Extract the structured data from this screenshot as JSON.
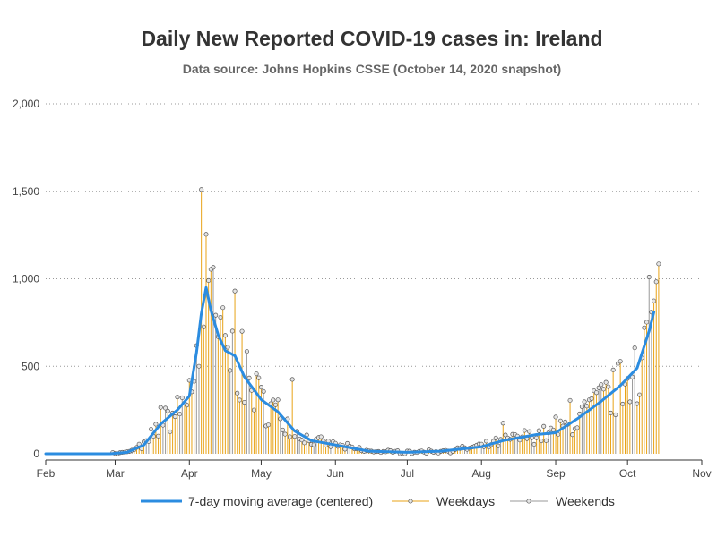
{
  "chart_data": {
    "type": "bar+line",
    "title": "Daily New Reported COVID-19 cases in: Ireland",
    "subtitle": "Data source: Johns Hopkins CSSE (October 14, 2020 snapshot)",
    "x_ticks": [
      "Feb",
      "Mar",
      "Apr",
      "May",
      "Jun",
      "Jul",
      "Aug",
      "Sep",
      "Oct",
      "Nov"
    ],
    "y_ticks": [
      "0",
      "500",
      "1,000",
      "1,500",
      "2,000"
    ],
    "ylim": [
      0,
      2000
    ],
    "xlim": [
      "2020-02-01",
      "2020-11-01"
    ],
    "grid": "horizontal dotted",
    "legend_position": "bottom",
    "colors": {
      "moving_average": "#2b8ce0",
      "weekdays": "#e8a317",
      "weekends": "#999999",
      "axis": "#333333",
      "grid": "#999999"
    },
    "series": [
      {
        "name": "7-day moving average (centered)",
        "style": "thick line"
      },
      {
        "name": "Weekdays",
        "style": "needle with circle marker"
      },
      {
        "name": "Weekends",
        "style": "needle with circle marker"
      }
    ],
    "key_points": [
      {
        "date": "2020-03-01",
        "value": 1
      },
      {
        "date": "2020-03-15",
        "value": 70
      },
      {
        "date": "2020-03-20",
        "value": 265
      },
      {
        "date": "2020-04-01",
        "value": 420
      },
      {
        "date": "2020-04-05",
        "value": 500
      },
      {
        "date": "2020-04-06",
        "value": 1510
      },
      {
        "date": "2020-04-07",
        "value": 725
      },
      {
        "date": "2020-04-09",
        "value": 990
      },
      {
        "date": "2020-04-11",
        "value": 1065
      },
      {
        "date": "2020-04-14",
        "value": 780
      },
      {
        "date": "2020-04-20",
        "value": 930
      },
      {
        "date": "2020-04-23",
        "value": 700
      },
      {
        "date": "2020-05-01",
        "value": 380
      },
      {
        "date": "2020-05-14",
        "value": 425
      },
      {
        "date": "2020-06-01",
        "value": 60
      },
      {
        "date": "2020-07-01",
        "value": 15
      },
      {
        "date": "2020-08-01",
        "value": 55
      },
      {
        "date": "2020-08-10",
        "value": 175
      },
      {
        "date": "2020-09-01",
        "value": 210
      },
      {
        "date": "2020-09-07",
        "value": 305
      },
      {
        "date": "2020-09-20",
        "value": 395
      },
      {
        "date": "2020-10-01",
        "value": 430
      },
      {
        "date": "2020-10-04",
        "value": 605
      },
      {
        "date": "2020-10-10",
        "value": 1010
      },
      {
        "date": "2020-10-11",
        "value": 810
      },
      {
        "date": "2020-10-14",
        "value": 1085
      }
    ],
    "moving_average": [
      {
        "date": "2020-02-01",
        "value": 0
      },
      {
        "date": "2020-02-28",
        "value": 0
      },
      {
        "date": "2020-03-06",
        "value": 8
      },
      {
        "date": "2020-03-13",
        "value": 50
      },
      {
        "date": "2020-03-20",
        "value": 170
      },
      {
        "date": "2020-03-27",
        "value": 250
      },
      {
        "date": "2020-04-01",
        "value": 330
      },
      {
        "date": "2020-04-04",
        "value": 580
      },
      {
        "date": "2020-04-06",
        "value": 800
      },
      {
        "date": "2020-04-08",
        "value": 950
      },
      {
        "date": "2020-04-10",
        "value": 820
      },
      {
        "date": "2020-04-13",
        "value": 680
      },
      {
        "date": "2020-04-16",
        "value": 590
      },
      {
        "date": "2020-04-20",
        "value": 560
      },
      {
        "date": "2020-04-24",
        "value": 440
      },
      {
        "date": "2020-05-01",
        "value": 310
      },
      {
        "date": "2020-05-08",
        "value": 240
      },
      {
        "date": "2020-05-15",
        "value": 130
      },
      {
        "date": "2020-05-22",
        "value": 75
      },
      {
        "date": "2020-06-01",
        "value": 50
      },
      {
        "date": "2020-06-15",
        "value": 15
      },
      {
        "date": "2020-07-01",
        "value": 8
      },
      {
        "date": "2020-07-15",
        "value": 15
      },
      {
        "date": "2020-08-01",
        "value": 40
      },
      {
        "date": "2020-08-10",
        "value": 75
      },
      {
        "date": "2020-08-24",
        "value": 110
      },
      {
        "date": "2020-09-01",
        "value": 120
      },
      {
        "date": "2020-09-10",
        "value": 200
      },
      {
        "date": "2020-09-20",
        "value": 300
      },
      {
        "date": "2020-09-28",
        "value": 390
      },
      {
        "date": "2020-10-05",
        "value": 490
      },
      {
        "date": "2020-10-10",
        "value": 700
      },
      {
        "date": "2020-10-12",
        "value": 810
      }
    ]
  }
}
